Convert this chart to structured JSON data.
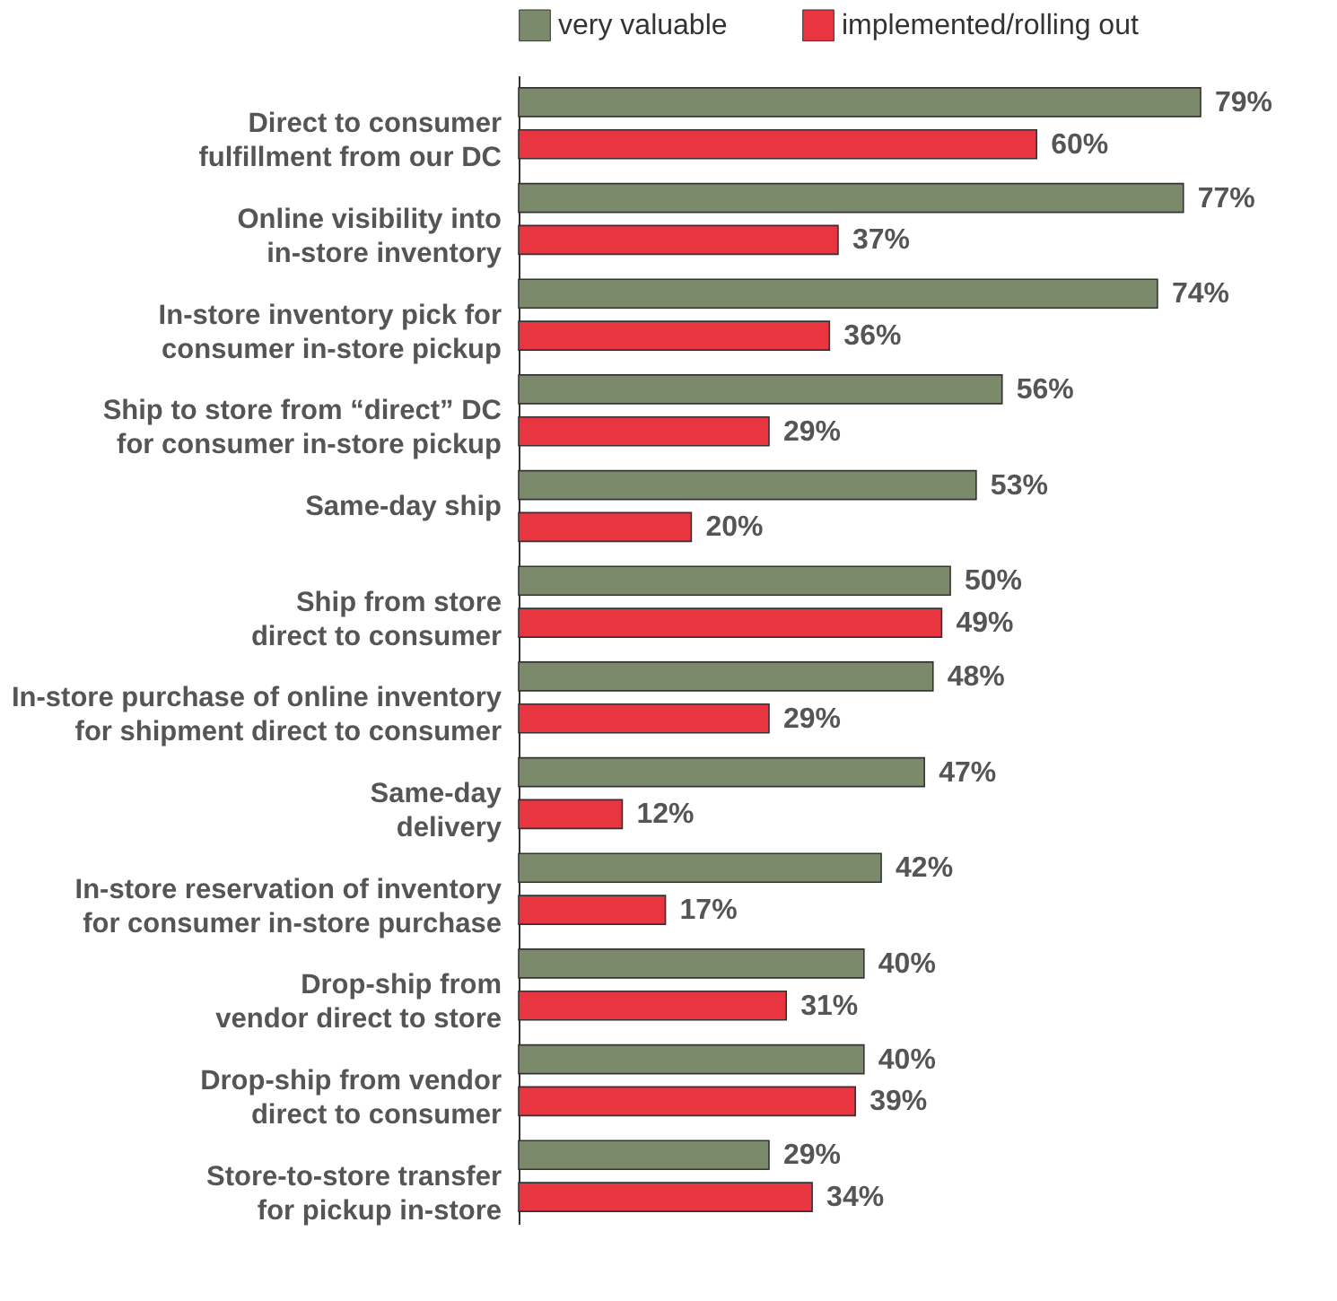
{
  "chart_data": {
    "type": "bar",
    "orientation": "horizontal",
    "legend": "top",
    "categories": [
      "Direct to consumer\nfulfillment from our DC",
      "Online visibility into\nin-store inventory",
      "In-store inventory pick for\nconsumer in-store pickup",
      "Ship to store from “direct” DC\nfor consumer in-store pickup",
      "Same-day ship",
      "Ship from store\ndirect to consumer",
      "In-store purchase of online inventory\nfor shipment direct to consumer",
      "Same-day\ndelivery",
      "In-store reservation of inventory\nfor consumer in-store purchase",
      "Drop-ship from\nvendor direct to store",
      "Drop-ship from vendor\ndirect to consumer",
      "Store-to-store transfer\nfor pickup in-store"
    ],
    "series": [
      {
        "name": "very valuable",
        "color": "#7b8a6b",
        "values": [
          79,
          77,
          74,
          56,
          53,
          50,
          48,
          47,
          42,
          40,
          40,
          29
        ],
        "value_labels": [
          "79%",
          "77%",
          "74%",
          "56%",
          "53%",
          "50%",
          "48%",
          "47%",
          "42%",
          "40%",
          "40%",
          "29%"
        ]
      },
      {
        "name": "implemented/rolling out",
        "color": "#e8353f",
        "values": [
          60,
          37,
          36,
          29,
          20,
          49,
          29,
          12,
          17,
          31,
          39,
          34
        ],
        "value_labels": [
          "60%",
          "37%",
          "36%",
          "29%",
          "20%",
          "49%",
          "29%",
          "12%",
          "17%",
          "31%",
          "39%",
          "34%"
        ]
      }
    ]
  }
}
